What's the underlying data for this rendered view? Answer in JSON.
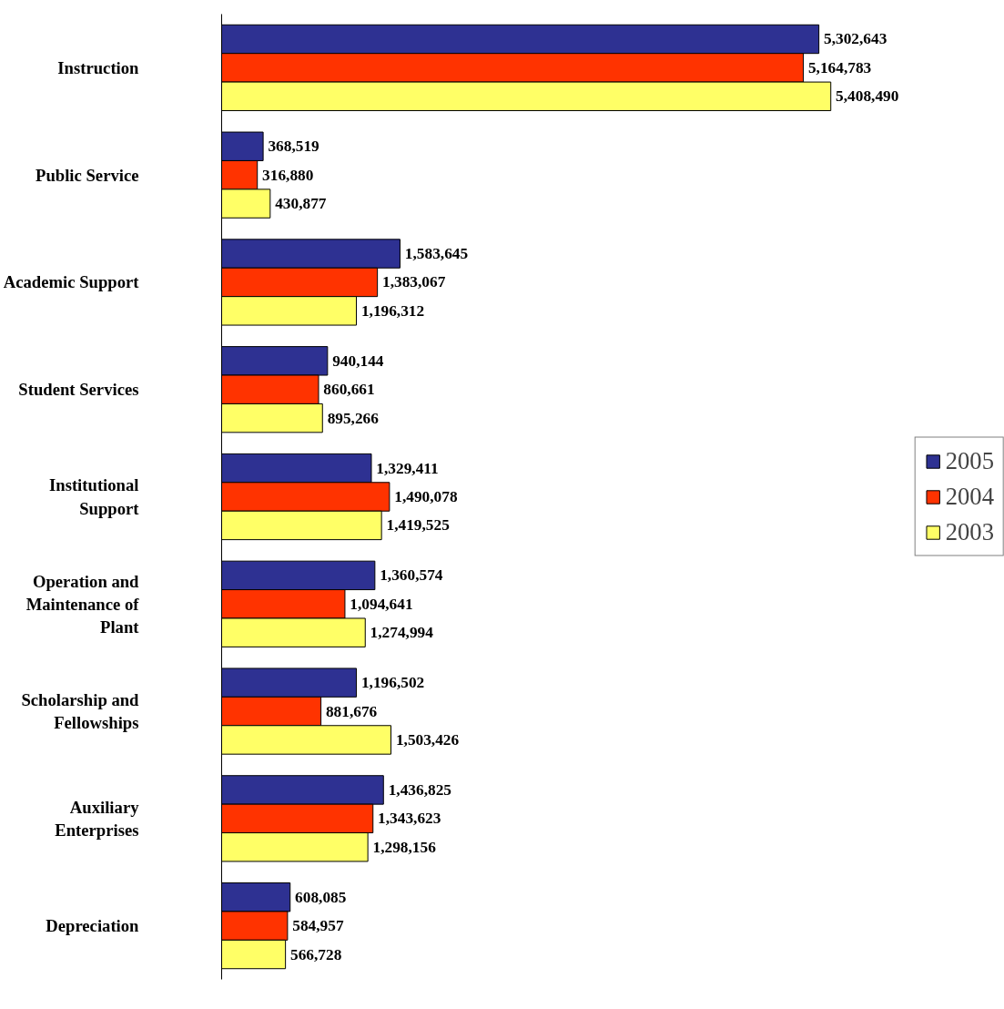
{
  "chart_data": {
    "type": "bar",
    "orientation": "horizontal",
    "categories": [
      "Instruction",
      "Public Service",
      "Academic Support",
      "Student Services",
      "Institutional Support",
      "Operation and Maintenance of Plant",
      "Scholarship and Fellowships",
      "Auxiliary Enterprises",
      "Depreciation"
    ],
    "series": [
      {
        "name": "2005",
        "color": "#2e3192",
        "values": [
          5302643,
          368519,
          1583645,
          940144,
          1329411,
          1360574,
          1196502,
          1436825,
          608085
        ],
        "value_labels": [
          "5,302,643",
          "368,519",
          "1,583,645",
          "940,144",
          "1,329,411",
          "1,360,574",
          "1,196,502",
          "1,436,825",
          "608,085"
        ]
      },
      {
        "name": "2004",
        "color": "#ff3300",
        "values": [
          5164783,
          316880,
          1383067,
          860661,
          1490078,
          1094641,
          881676,
          1343623,
          584957
        ],
        "value_labels": [
          "5,164,783",
          "316,880",
          "1,383,067",
          "860,661",
          "1,490,078",
          "1,094,641",
          "881,676",
          "1,343,623",
          "584,957"
        ]
      },
      {
        "name": "2003",
        "color": "#ffff66",
        "values": [
          5408490,
          430877,
          1196312,
          895266,
          1419525,
          1274994,
          1503426,
          1298156,
          566728
        ],
        "value_labels": [
          "5,408,490",
          "430,877",
          "1,196,312",
          "895,266",
          "1,419,525",
          "1,274,994",
          "1,503,426",
          "1,298,156",
          "566,728"
        ]
      }
    ],
    "legend": "right",
    "grid": false
  }
}
